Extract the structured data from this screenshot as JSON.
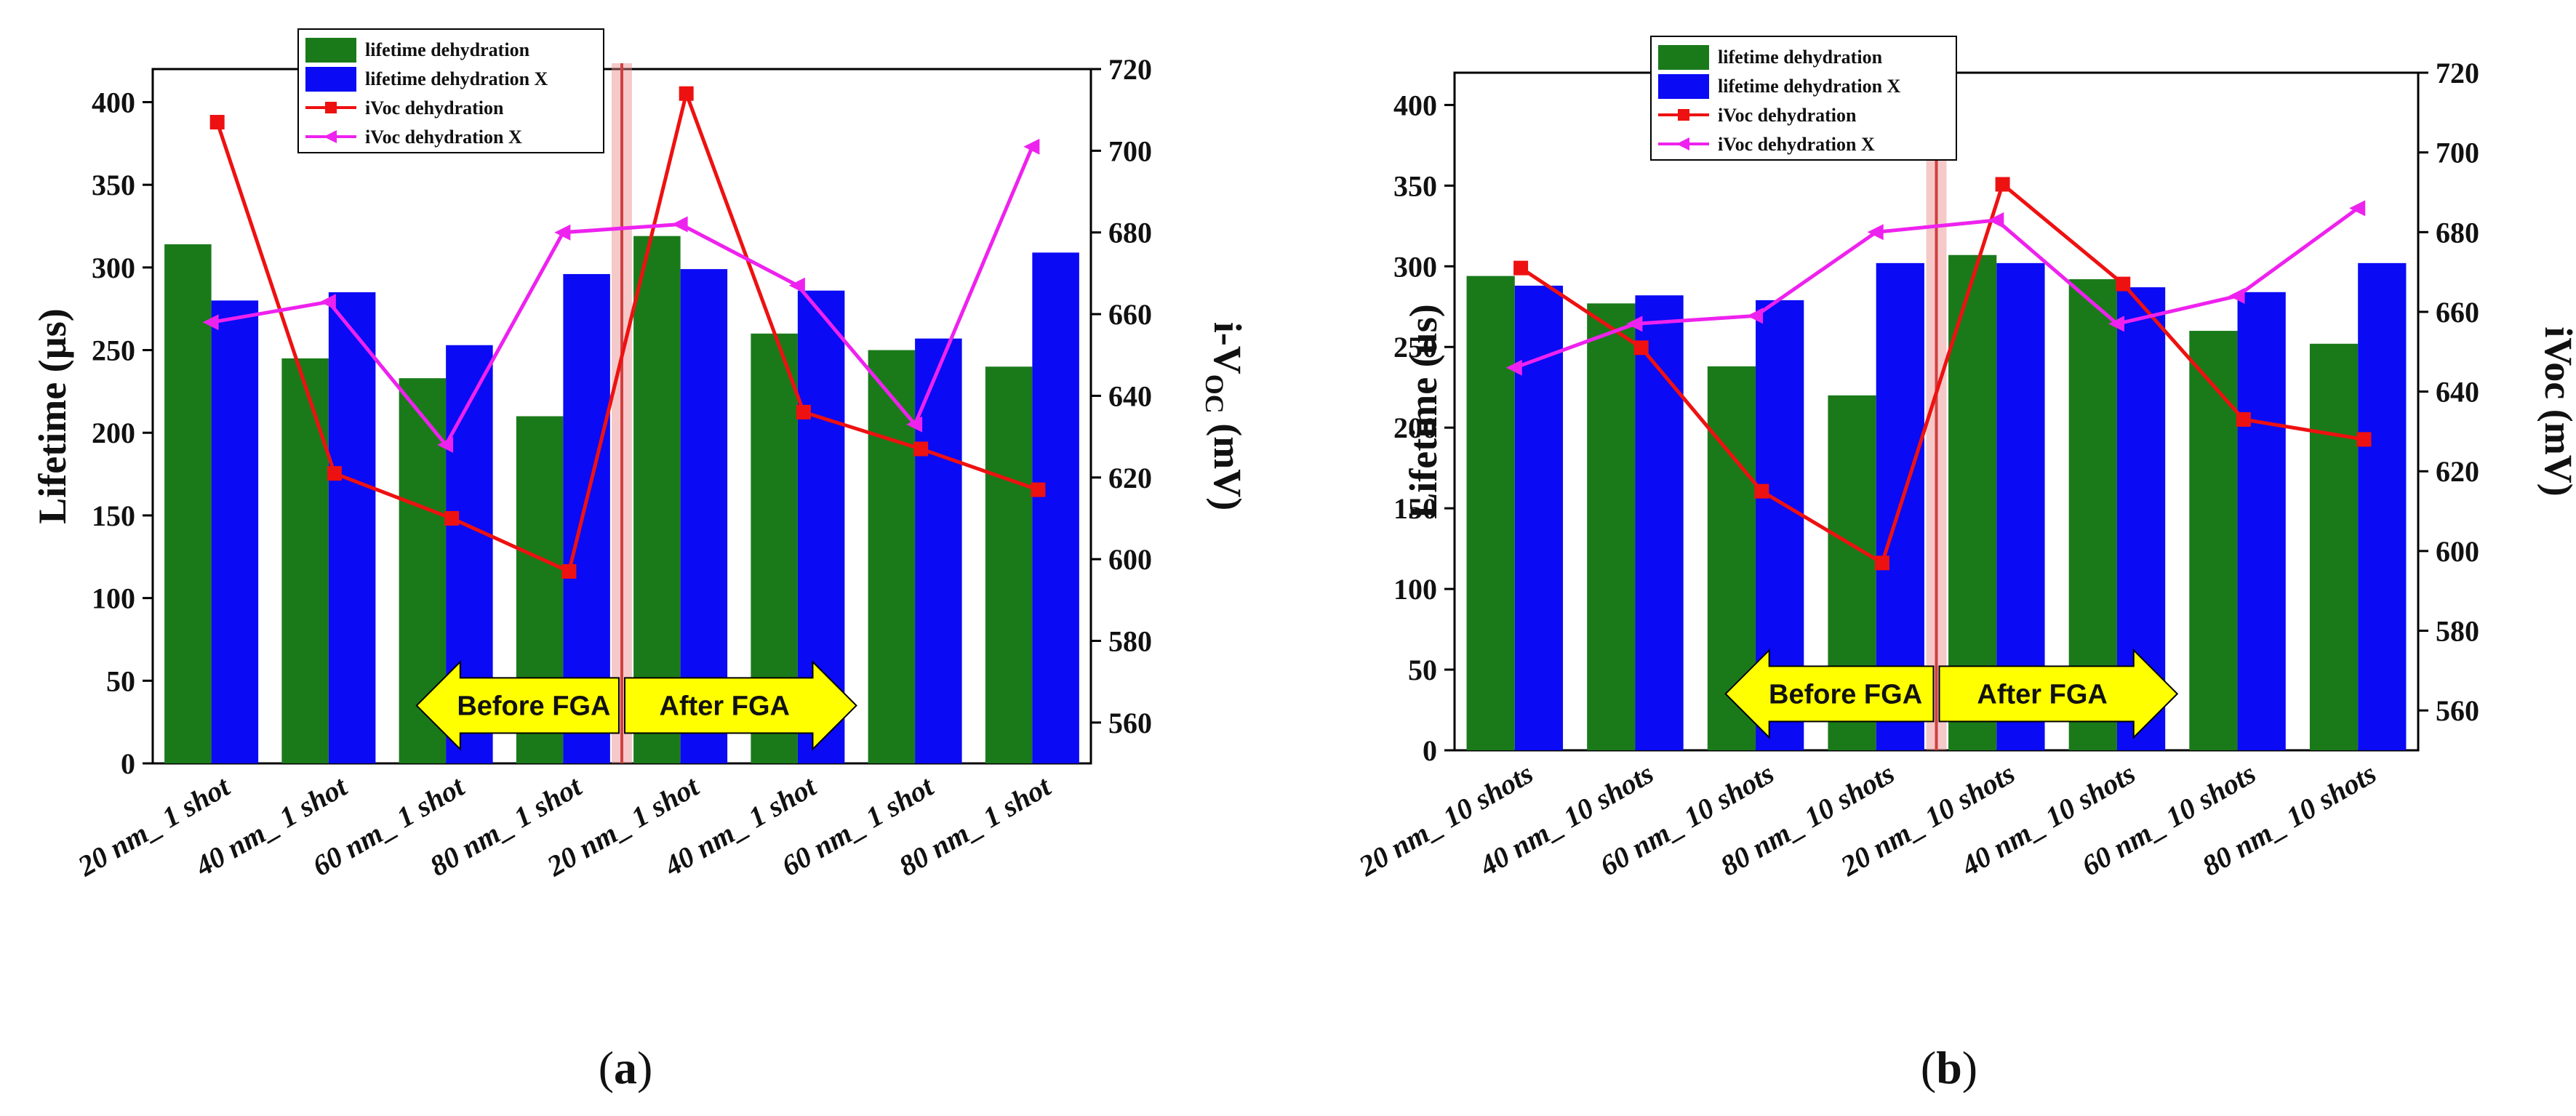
{
  "colors": {
    "lifetime_dehydration": "#1a7a1a",
    "lifetime_dehydration_x": "#0a0af5",
    "ivoc_dehydration": "#ee1111",
    "ivoc_dehydration_x": "#ee22ee",
    "arrow_fill": "#ffff00",
    "fga_marker": "#e88888"
  },
  "chart_data": [
    {
      "type": "bar",
      "panel_label": "a",
      "title": "",
      "ylabel": "Lifetime (µs)",
      "y2label_main": "i-V",
      "y2label_sub": "OC",
      "y2label_unit": " (mV)",
      "ylim": [
        0,
        420
      ],
      "yticks": [
        0,
        50,
        100,
        150,
        200,
        250,
        300,
        350,
        400
      ],
      "y2lim": [
        550,
        720
      ],
      "y2ticks": [
        560,
        580,
        600,
        620,
        640,
        660,
        680,
        700,
        720
      ],
      "categories": [
        "20 nm_ 1 shot",
        "40 nm_ 1 shot",
        "60 nm_ 1 shot",
        "80 nm_ 1 shot",
        "20 nm_ 1 shot",
        "40 nm_ 1 shot",
        "60 nm_ 1 shot",
        "80 nm_ 1 shot"
      ],
      "series": [
        {
          "name": "lifetime dehydration",
          "type": "bar",
          "axis": "left",
          "values": [
            314,
            245,
            233,
            210,
            319,
            260,
            250,
            240
          ]
        },
        {
          "name": "lifetime dehydration X",
          "type": "bar",
          "axis": "left",
          "values": [
            280,
            285,
            253,
            296,
            299,
            286,
            257,
            309
          ]
        },
        {
          "name": "iVoc dehydration",
          "type": "line",
          "axis": "right",
          "values": [
            707,
            621,
            610,
            597,
            714,
            636,
            627,
            617
          ]
        },
        {
          "name": "iVoc dehydration X",
          "type": "line",
          "axis": "right",
          "values": [
            658,
            663,
            628,
            680,
            682,
            667,
            633,
            701
          ]
        }
      ],
      "annotations": {
        "before": "Before FGA",
        "after": "After FGA"
      },
      "legend_position": "top-left"
    },
    {
      "type": "bar",
      "panel_label": "b",
      "title": "",
      "ylabel": "Lifetime (us)",
      "y2label_main": "iVoc",
      "y2label_sub": "",
      "y2label_unit": " (mV)",
      "ylim": [
        0,
        420
      ],
      "yticks": [
        0,
        50,
        100,
        150,
        200,
        250,
        300,
        350,
        400
      ],
      "y2lim": [
        550,
        720
      ],
      "y2ticks": [
        560,
        580,
        600,
        620,
        640,
        660,
        680,
        700,
        720
      ],
      "categories": [
        "20 nm_ 10 shots",
        "40 nm_ 10 shots",
        "60 nm_ 10 shots",
        "80 nm_ 10 shots",
        "20 nm_ 10 shots",
        "40 nm_ 10 shots",
        "60 nm_ 10 shots",
        "80 nm_ 10 shots"
      ],
      "series": [
        {
          "name": "lifetime dehydration",
          "type": "bar",
          "axis": "left",
          "values": [
            294,
            277,
            238,
            220,
            307,
            292,
            260,
            252
          ]
        },
        {
          "name": "lifetime dehydration X",
          "type": "bar",
          "axis": "left",
          "values": [
            288,
            282,
            279,
            302,
            302,
            287,
            284,
            302
          ]
        },
        {
          "name": "iVoc dehydration",
          "type": "line",
          "axis": "right",
          "values": [
            671,
            651,
            615,
            597,
            692,
            667,
            633,
            628
          ]
        },
        {
          "name": "iVoc dehydration X",
          "type": "line",
          "axis": "right",
          "values": [
            646,
            657,
            659,
            680,
            683,
            657,
            664,
            686
          ]
        }
      ],
      "annotations": {
        "before": "Before FGA",
        "after": "After FGA"
      },
      "legend_position": "top-left"
    }
  ]
}
